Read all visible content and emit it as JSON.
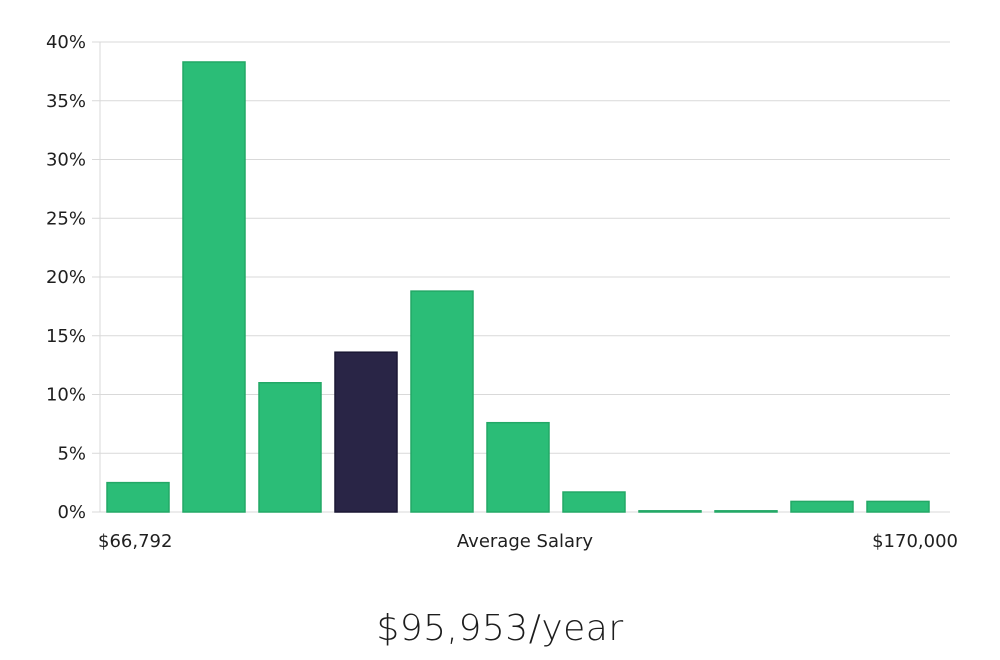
{
  "chart_data": {
    "type": "bar",
    "values": [
      2.5,
      38.3,
      11.0,
      13.6,
      18.8,
      7.6,
      1.7,
      0.1,
      0.1,
      0.9,
      0.9
    ],
    "highlight_index": 3,
    "ylim": [
      0,
      40
    ],
    "y_ticks": [
      0,
      5,
      10,
      15,
      20,
      25,
      30,
      35,
      40
    ],
    "y_tick_suffix": "%",
    "x_min_label": "$66,792",
    "xlabel": "Average Salary",
    "x_max_label": "$170,000",
    "grid": true,
    "colors": {
      "bar": "#2bbd77",
      "bar_stroke": "#23a866",
      "highlight": "#292546",
      "highlight_stroke": "#1a1733",
      "grid": "#d9d9d9"
    }
  },
  "salary_text": "$95,953/year"
}
